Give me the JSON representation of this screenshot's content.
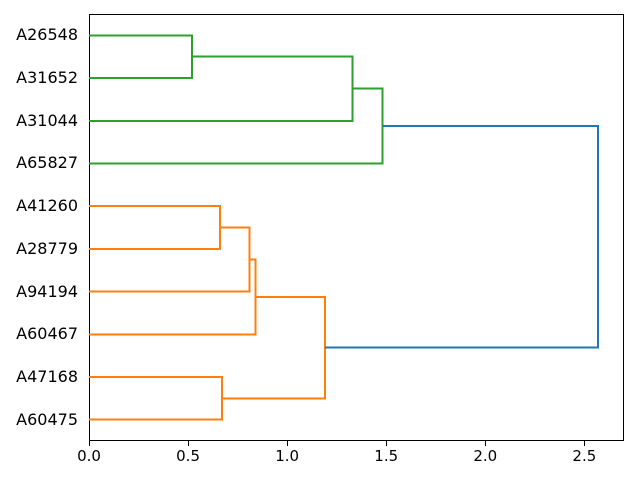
{
  "chart_data": {
    "type": "dendrogram",
    "orientation": "left-labels-root-right",
    "title": "",
    "xlabel": "",
    "ylabel": "",
    "leaves": [
      "A26548",
      "A31652",
      "A31044",
      "A65827",
      "A41260",
      "A28779",
      "A94194",
      "A60467",
      "A47168",
      "A60475"
    ],
    "links": [
      {
        "children": [
          "A26548",
          "A31652"
        ],
        "distance": 0.52,
        "color": "#2ca02c"
      },
      {
        "children": [
          "#0",
          "A31044"
        ],
        "distance": 1.33,
        "color": "#2ca02c"
      },
      {
        "children": [
          "#1",
          "A65827"
        ],
        "distance": 1.48,
        "color": "#2ca02c"
      },
      {
        "children": [
          "A41260",
          "A28779"
        ],
        "distance": 0.66,
        "color": "#ff7f0e"
      },
      {
        "children": [
          "#3",
          "A94194"
        ],
        "distance": 0.81,
        "color": "#ff7f0e"
      },
      {
        "children": [
          "#4",
          "A60467"
        ],
        "distance": 0.84,
        "color": "#ff7f0e"
      },
      {
        "children": [
          "A47168",
          "A60475"
        ],
        "distance": 0.67,
        "color": "#ff7f0e"
      },
      {
        "children": [
          "#5",
          "#6"
        ],
        "distance": 1.19,
        "color": "#ff7f0e"
      },
      {
        "children": [
          "#2",
          "#7"
        ],
        "distance": 2.57,
        "color": "#1f77b4"
      }
    ],
    "x_ticks": [
      "0.0",
      "0.5",
      "1.0",
      "1.5",
      "2.0",
      "2.5"
    ],
    "xlim": [
      0,
      2.7
    ],
    "grid": false,
    "legend": false,
    "colors": {
      "cluster_green": "#2ca02c",
      "cluster_orange": "#ff7f0e",
      "above_threshold_blue": "#1f77b4",
      "axes": "#000000",
      "background": "#ffffff"
    }
  }
}
